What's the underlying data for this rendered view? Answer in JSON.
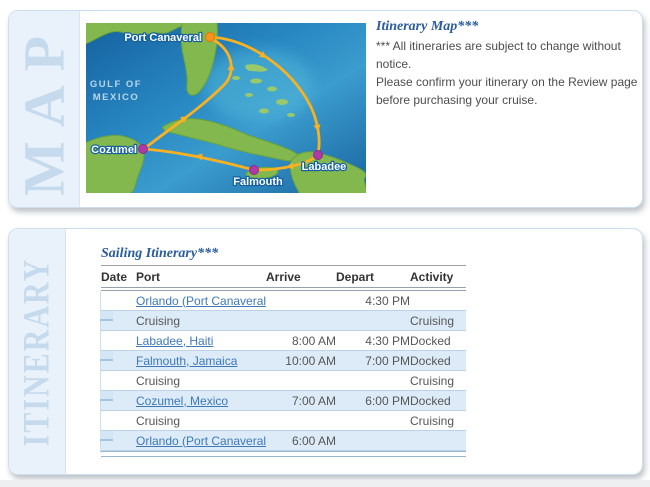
{
  "map_panel": {
    "side_label": "MAP",
    "title": "Itinerary Map***",
    "disclaimer_lines": [
      "*** All itineraries are subject to change without notice.",
      "Please confirm your itinerary on the Review page",
      "before purchasing your cruise."
    ],
    "map": {
      "sea_label_line1": "GULF OF",
      "sea_label_line2": "MEXICO",
      "ports": [
        {
          "name": "Port Canaveral",
          "type": "embark-port",
          "marker_color": "#f79420"
        },
        {
          "name": "Cozumel",
          "type": "port-of-call",
          "marker_color": "#ae3aa6"
        },
        {
          "name": "Falmouth",
          "type": "port-of-call",
          "marker_color": "#ae3aa6"
        },
        {
          "name": "Labadee",
          "type": "port-of-call",
          "marker_color": "#ae3aa6"
        }
      ],
      "route_color": "#f9b021",
      "land_color": "#83b84e",
      "ocean_color": "#2582bd"
    }
  },
  "itinerary_panel": {
    "side_label": "ITINERARY",
    "title": "Sailing Itinerary***",
    "columns": [
      "Date",
      "Port",
      "Arrive",
      "Depart",
      "Activity"
    ],
    "rows": [
      {
        "date": "",
        "port": "Orlando (Port Canaveral)",
        "port_is_link": true,
        "arrive": "",
        "depart": "4:30 PM",
        "activity": ""
      },
      {
        "date": "",
        "port": "Cruising",
        "port_is_link": false,
        "arrive": "",
        "depart": "",
        "activity": "Cruising"
      },
      {
        "date": "",
        "port": "Labadee, Haiti",
        "port_is_link": true,
        "arrive": "8:00 AM",
        "depart": "4:30 PM",
        "activity": "Docked"
      },
      {
        "date": "",
        "port": "Falmouth, Jamaica",
        "port_is_link": true,
        "arrive": "10:00 AM",
        "depart": "7:00 PM",
        "activity": "Docked"
      },
      {
        "date": "",
        "port": "Cruising",
        "port_is_link": false,
        "arrive": "",
        "depart": "",
        "activity": "Cruising"
      },
      {
        "date": "",
        "port": "Cozumel, Mexico",
        "port_is_link": true,
        "arrive": "7:00 AM",
        "depart": "6:00 PM",
        "activity": "Docked"
      },
      {
        "date": "",
        "port": "Cruising",
        "port_is_link": false,
        "arrive": "",
        "depart": "",
        "activity": "Cruising"
      },
      {
        "date": "",
        "port": "Orlando (Port Canaveral)",
        "port_is_link": true,
        "arrive": "6:00 AM",
        "depart": "",
        "activity": ""
      }
    ]
  },
  "colors": {
    "panel_border": "#cddfee",
    "side_band": "#e9f2fb",
    "side_label_text": "#c6daed",
    "heading_blue": "#2a5c9c",
    "link_blue": "#3e79b8",
    "row_alt_blue": "#dcebf7",
    "row_separator": "#bcd2e5",
    "body_gray": "#4d4d4d"
  }
}
